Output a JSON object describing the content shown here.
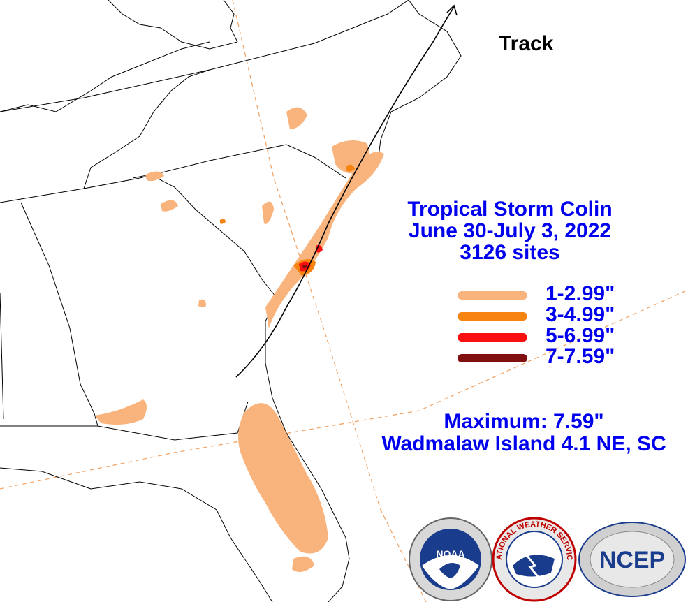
{
  "map": {
    "track_label": "Track",
    "storm_name": "Tropical Storm Colin",
    "date_range": "June 30-July 3, 2022",
    "sites": "3126 sites",
    "maximum_label": "Maximum:  7.59\"",
    "maximum_location": "Wadmalaw Island 4.1 NE, SC"
  },
  "legend": [
    {
      "label": "1-2.99\"",
      "color": "#f8b47c"
    },
    {
      "label": "3-4.99\"",
      "color": "#f88410"
    },
    {
      "label": "5-6.99\"",
      "color": "#f81010"
    },
    {
      "label": "7-7.59\"",
      "color": "#801010"
    }
  ],
  "logos": {
    "noaa_text": "NOAA",
    "nws_text": "NATIONAL WEATHER SERVICE",
    "ncep_text": "NCEP"
  },
  "colors": {
    "text": "#0000ee",
    "land_border": "#000000",
    "graticule": "#f0a060"
  }
}
